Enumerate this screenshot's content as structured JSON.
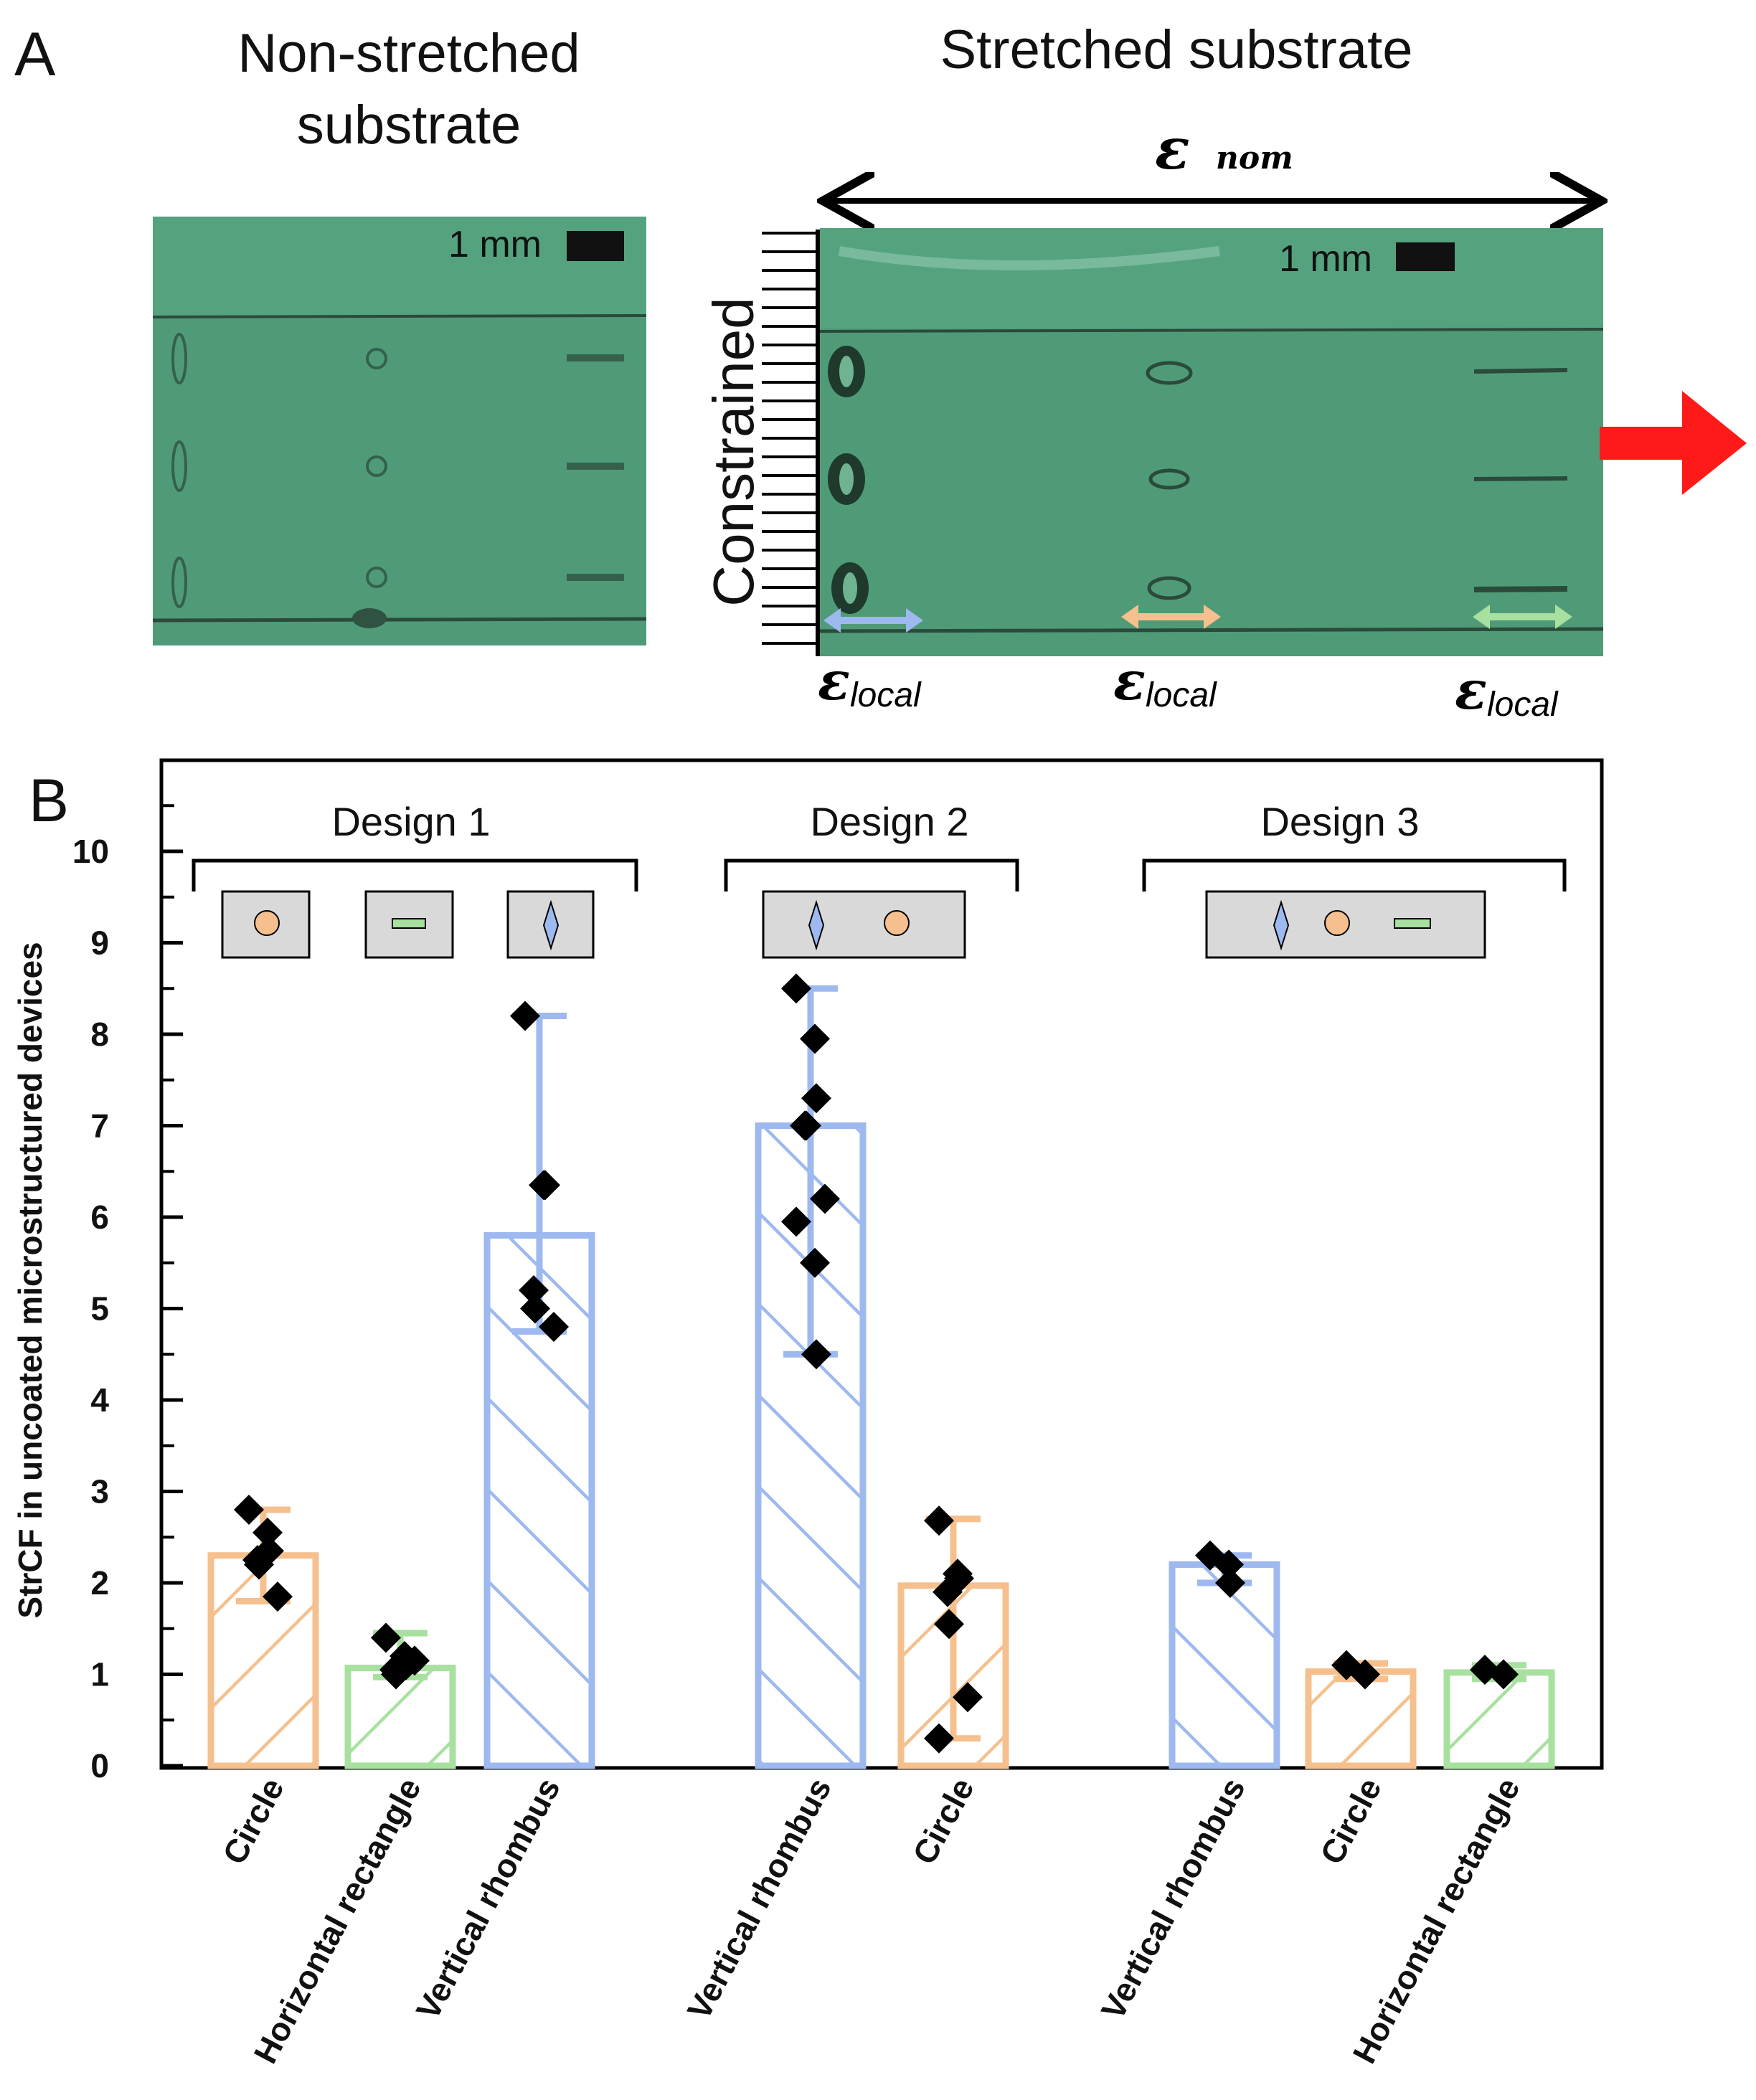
{
  "panel_a": {
    "label": "A",
    "left_title_line1": "Non-stretched",
    "left_title_line2": "substrate",
    "right_title": "Stretched substrate",
    "scale_bar_left": "1 mm",
    "scale_bar_right": "1 mm",
    "constraint_label": "Constrained",
    "nominal_strain_symbol": "ε",
    "nominal_strain_subscript": "nom",
    "local_strain_symbol": "ε",
    "local_strain_subscript": "local",
    "colors": {
      "substrate": "#4f9b78",
      "pull_arrow": "#ff1a1a",
      "rhombus": "#9db9ef",
      "circle": "#f5c08e",
      "rectangle": "#a8e0a0"
    }
  },
  "panel_b": {
    "label": "B",
    "design_labels": [
      "Design 1",
      "Design 2",
      "Design 3"
    ]
  },
  "chart_data": {
    "type": "bar",
    "ylabel": "StrCF in uncoated microstructured devices",
    "ylim": [
      0,
      11
    ],
    "yticks": [
      0,
      1,
      2,
      3,
      4,
      5,
      6,
      7,
      8,
      9,
      10
    ],
    "colors": {
      "rhombus": "#9db9ef",
      "circle": "#f5c08e",
      "rectangle": "#a8e0a0"
    },
    "categories": [
      "Circle",
      "Horizontal rectangle",
      "Vertical rhombus",
      "Vertical rhombus",
      "Circle",
      "Vertical rhombus",
      "Circle",
      "Horizontal rectangle"
    ],
    "groups": [
      "Design 1",
      "Design 1",
      "Design 1",
      "Design 2",
      "Design 2",
      "Design 3",
      "Design 3",
      "Design 3"
    ],
    "shapes": [
      "circle",
      "rectangle",
      "rhombus",
      "rhombus",
      "circle",
      "rhombus",
      "circle",
      "rectangle"
    ],
    "values": [
      2.3,
      1.07,
      5.8,
      7.0,
      1.97,
      2.2,
      1.03,
      1.02
    ],
    "error_low": [
      1.8,
      0.97,
      4.75,
      4.5,
      0.3,
      2.0,
      0.95,
      0.95
    ],
    "error_high": [
      2.8,
      1.45,
      8.2,
      8.5,
      2.7,
      2.3,
      1.12,
      1.1
    ],
    "points": [
      [
        2.8,
        2.55,
        2.35,
        2.25,
        2.2,
        1.85
      ],
      [
        1.4,
        1.2,
        1.1,
        1.05,
        1.0,
        1.15
      ],
      [
        8.2,
        6.35,
        6.35,
        5.2,
        5.0,
        4.8
      ],
      [
        8.5,
        7.95,
        7.3,
        7.0,
        7.0,
        6.2,
        5.95,
        5.5,
        4.5
      ],
      [
        2.68,
        2.1,
        2.05,
        1.9,
        1.55,
        0.75,
        0.3
      ],
      [
        2.3,
        2.2,
        2.0
      ],
      [
        1.1,
        1.0
      ],
      [
        1.05,
        1.0
      ]
    ]
  }
}
